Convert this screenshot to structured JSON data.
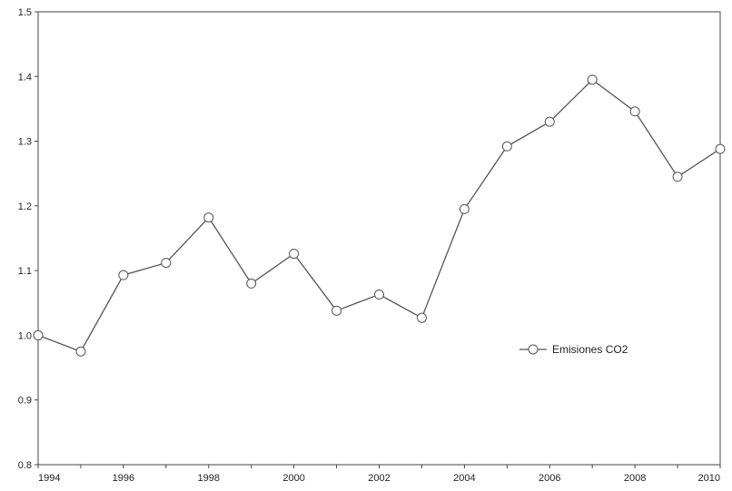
{
  "chart_data": {
    "type": "line",
    "title": "",
    "xlabel": "",
    "ylabel": "",
    "x": [
      1994,
      1995,
      1996,
      1997,
      1998,
      1999,
      2000,
      2001,
      2002,
      2003,
      2004,
      2005,
      2006,
      2007,
      2008,
      2009,
      2010
    ],
    "series": [
      {
        "name": "Emisiones CO2",
        "values": [
          1.0,
          0.975,
          1.093,
          1.112,
          1.182,
          1.08,
          1.126,
          1.038,
          1.063,
          1.027,
          1.195,
          1.292,
          1.33,
          1.395,
          1.346,
          1.245,
          1.288
        ]
      }
    ],
    "xlim": [
      1994,
      2010
    ],
    "ylim": [
      0.8,
      1.5
    ],
    "x_ticks": [
      "1994",
      "1996",
      "1998",
      "2000",
      "2002",
      "2004",
      "2006",
      "2008",
      "2010"
    ],
    "y_ticks": [
      "0.8",
      "0.9",
      "1.0",
      "1.1",
      "1.2",
      "1.3",
      "1.4",
      "1.5"
    ],
    "grid": false,
    "legend_position": "inside-right",
    "line_color": "#555555",
    "marker": "open-circle"
  }
}
